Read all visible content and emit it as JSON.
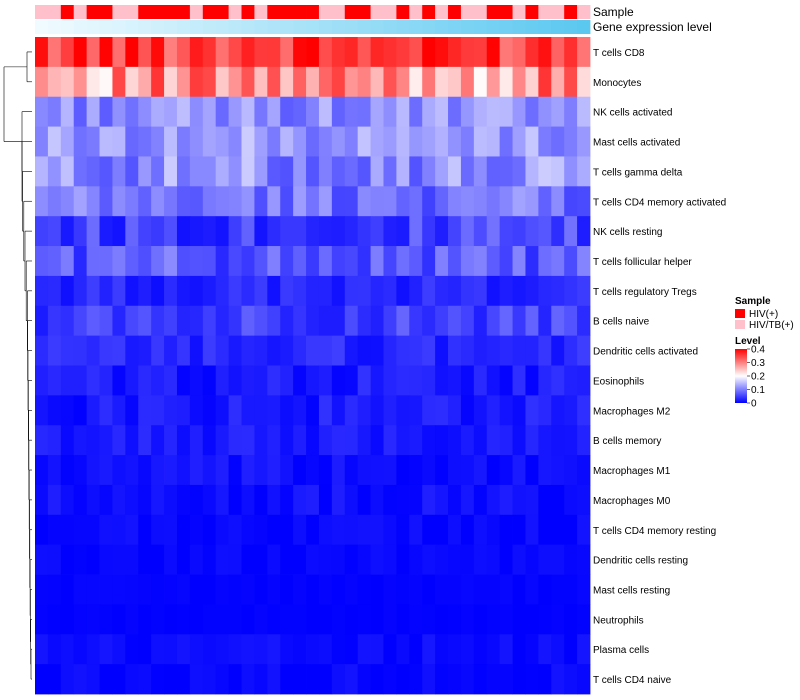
{
  "chart_data": {
    "type": "heatmap",
    "title": "",
    "annotation_labels": {
      "sample": "Sample",
      "gene": "Gene expression level"
    },
    "rows": [
      "T cells CD8",
      "Monocytes",
      "NK cells activated",
      "Mast cells activated",
      "T cells gamma delta",
      "T cells CD4 memory activated",
      "NK cells resting",
      "T cells follicular helper",
      "T cells regulatory  Tregs",
      "B cells naive",
      "Dendritic cells activated",
      "Eosinophils",
      "Macrophages M2",
      "B cells memory",
      "Macrophages M1",
      "Macrophages M0",
      "T cells CD4 memory resting",
      "Dendritic cells resting",
      "Mast cells resting",
      "Neutrophils",
      "Plasma cells",
      "T cells CD4 naive"
    ],
    "n_columns": 43,
    "sample_groups": [
      "HIV/TB(+)",
      "HIV/TB(+)",
      "HIV(+)",
      "HIV/TB(+)",
      "HIV(+)",
      "HIV(+)",
      "HIV/TB(+)",
      "HIV/TB(+)",
      "HIV(+)",
      "HIV(+)",
      "HIV(+)",
      "HIV(+)",
      "HIV/TB(+)",
      "HIV(+)",
      "HIV(+)",
      "HIV/TB(+)",
      "HIV(+)",
      "HIV/TB(+)",
      "HIV(+)",
      "HIV(+)",
      "HIV(+)",
      "HIV(+)",
      "HIV/TB(+)",
      "HIV/TB(+)",
      "HIV(+)",
      "HIV(+)",
      "HIV/TB(+)",
      "HIV/TB(+)",
      "HIV(+)",
      "HIV/TB(+)",
      "HIV(+)",
      "HIV/TB(+)",
      "HIV(+)",
      "HIV/TB(+)",
      "HIV/TB(+)",
      "HIV(+)",
      "HIV(+)",
      "HIV/TB(+)",
      "HIV(+)",
      "HIV/TB(+)",
      "HIV/TB(+)",
      "HIV(+)",
      "HIV/TB(+)"
    ],
    "row_mean_level": [
      0.36,
      0.28,
      0.11,
      0.12,
      0.11,
      0.09,
      0.05,
      0.07,
      0.03,
      0.05,
      0.03,
      0.02,
      0.02,
      0.02,
      0.01,
      0.01,
      0.005,
      0.004,
      0.002,
      0.001,
      0.007,
      0.005
    ],
    "row_spread": [
      0.06,
      0.08,
      0.04,
      0.04,
      0.05,
      0.04,
      0.04,
      0.04,
      0.02,
      0.03,
      0.02,
      0.02,
      0.02,
      0.015,
      0.015,
      0.015,
      0.01,
      0.008,
      0.004,
      0.002,
      0.012,
      0.01
    ],
    "legend": {
      "sample_title": "Sample",
      "sample_entries": [
        {
          "name": "HIV(+)",
          "color": "#ff0000"
        },
        {
          "name": "HIV/TB(+)",
          "color": "#ffc0cb"
        }
      ],
      "level_title": "Level",
      "level_ticks": [
        "0.4",
        "0.3",
        "0.2",
        "0.1",
        "0"
      ],
      "level_range": [
        0,
        0.4
      ],
      "level_colors": [
        "#0000ff",
        "#ffffff",
        "#ff0000"
      ]
    },
    "gene_gradient": [
      "#f0fbff",
      "#5bc8f0"
    ]
  }
}
